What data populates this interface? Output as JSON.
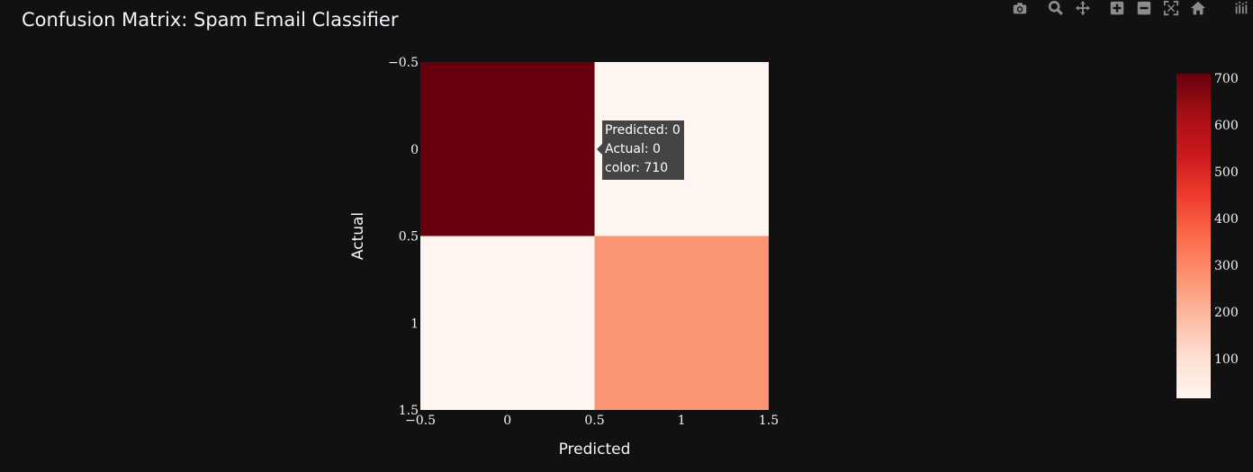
{
  "title": "Confusion Matrix: Spam Email Classifier",
  "modebar": {
    "icons": [
      "camera-icon",
      "zoom-icon",
      "pan-icon",
      "zoom-in-icon",
      "zoom-out-icon",
      "autoscale-icon",
      "home-icon",
      "plotly-logo-icon"
    ]
  },
  "chart_data": {
    "type": "heatmap",
    "title": "Confusion Matrix: Spam Email Classifier",
    "xlabel": "Predicted",
    "ylabel": "Actual",
    "x": [
      0,
      1
    ],
    "y": [
      0,
      1
    ],
    "z": [
      [
        710,
        15
      ],
      [
        18,
        270
      ]
    ],
    "xlim": [
      -0.5,
      1.5
    ],
    "ylim": [
      -0.5,
      1.5
    ],
    "y_reversed": true,
    "x_ticks": [
      "−0.5",
      "0",
      "0.5",
      "1",
      "1.5"
    ],
    "y_ticks": [
      "−0.5",
      "0",
      "0.5",
      "1",
      "1.5"
    ],
    "colorscale": "Reds",
    "colorscale_stops": [
      "#fff5f0",
      "#fee0d2",
      "#fcbba1",
      "#fc9272",
      "#fb6a4a",
      "#ef3b2c",
      "#cb181d",
      "#a50f15",
      "#67000d"
    ],
    "zmin": 15,
    "zmax": 710,
    "colorbar_ticks": [
      100,
      200,
      300,
      400,
      500,
      600,
      700
    ]
  },
  "tooltip": {
    "line1": "Predicted: 0",
    "line2": "Actual: 0",
    "line3": "color: 710"
  }
}
